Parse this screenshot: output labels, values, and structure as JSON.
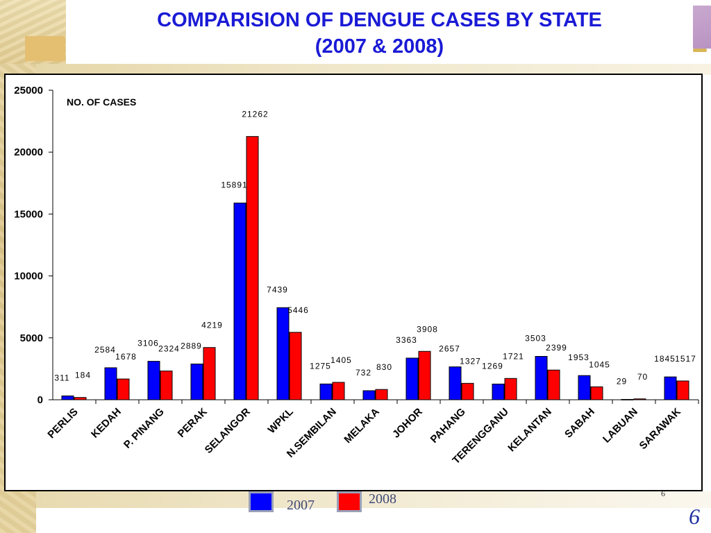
{
  "slide": {
    "title_line1": "COMPARISION OF DENGUE CASES BY STATE",
    "title_line2": "(2007 & 2008)",
    "page_number_small": "6",
    "page_number": "6"
  },
  "colors": {
    "series_2007": "#0000ff",
    "series_2008": "#ff0000",
    "title": "#1a1ad6"
  },
  "legend": [
    {
      "label": "2007",
      "color": "#0000ff"
    },
    {
      "label": "2008",
      "color": "#ff0000"
    }
  ],
  "chart_data": {
    "type": "bar",
    "title": "",
    "ylabel": "NO. OF CASES",
    "xlabel": "",
    "ylim": [
      0,
      25000
    ],
    "yticks": [
      0,
      5000,
      10000,
      15000,
      20000,
      25000
    ],
    "grid": false,
    "legend_position": "bottom",
    "categories": [
      "PERLIS",
      "KEDAH",
      "P. PINANG",
      "PERAK",
      "SELANGOR",
      "WPKL",
      "N.SEMBILAN",
      "MELAKA",
      "JOHOR",
      "PAHANG",
      "TERENGGANU",
      "KELANTAN",
      "SABAH",
      "LABUAN",
      "SARAWAK"
    ],
    "series": [
      {
        "name": "2007",
        "color": "#0000ff",
        "values": [
          311,
          2584,
          3106,
          2889,
          15891,
          7439,
          1275,
          732,
          3363,
          2657,
          1269,
          3503,
          1953,
          29,
          1845
        ]
      },
      {
        "name": "2008",
        "color": "#ff0000",
        "values": [
          184,
          1678,
          2324,
          4219,
          21262,
          5446,
          1405,
          830,
          3908,
          1327,
          1721,
          2399,
          1045,
          70,
          1517
        ]
      }
    ]
  }
}
